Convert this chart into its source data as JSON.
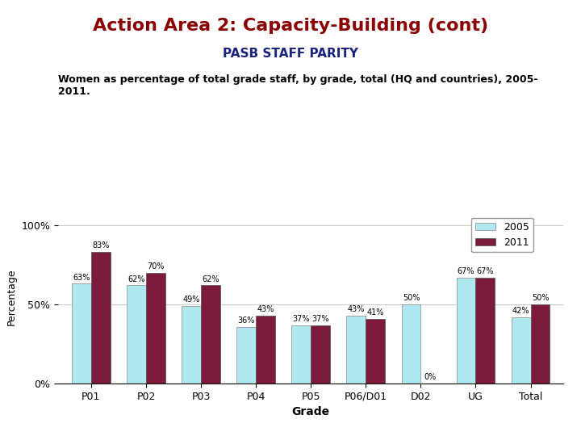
{
  "title": "Action Area 2: Capacity-Building (cont)",
  "subtitle": "PASB STAFF PARITY",
  "description": "Women as percentage of total grade staff, by grade, total (HQ and countries), 2005-\n2011.",
  "categories": [
    "P01",
    "P02",
    "P03",
    "P04",
    "P05",
    "P06/D01",
    "D02",
    "UG",
    "Total"
  ],
  "values_2005": [
    63,
    62,
    49,
    36,
    37,
    43,
    50,
    67,
    42
  ],
  "values_2011": [
    83,
    70,
    62,
    43,
    37,
    41,
    0,
    67,
    50
  ],
  "color_2005": "#b0e8f0",
  "color_2011": "#7b1a3a",
  "title_color": "#8b0000",
  "subtitle_color": "#1a237e",
  "bar_width": 0.35,
  "ylim": [
    0,
    110
  ],
  "yticks": [
    0,
    50,
    100
  ],
  "ytick_labels": [
    "0%",
    "50%",
    "100%"
  ],
  "ylabel": "Percentage",
  "xlabel": "Grade",
  "legend_2005": "2005",
  "legend_2011": "2011",
  "background_color": "#ffffff",
  "grid_color": "#cccccc"
}
